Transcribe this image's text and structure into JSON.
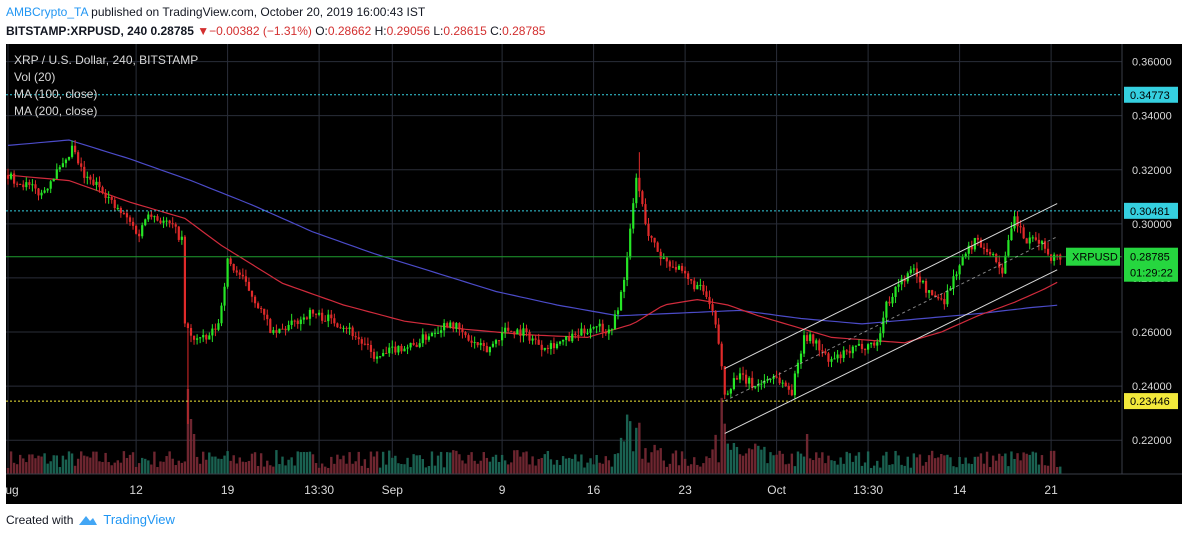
{
  "header": {
    "author": "AMBCrypto_TA",
    "published_text": "published on TradingView.com, October 20, 2019 16:00:43 IST",
    "symbol_line_prefix": "BITSTAMP:XRPUSD, 240",
    "last_price": "0.28785",
    "change_arrow": "▼",
    "change": "−0.00382 (−1.31%)",
    "ohlc": [
      {
        "label": "O:",
        "value": "0.28662"
      },
      {
        "label": "H:",
        "value": "0.29056"
      },
      {
        "label": "L:",
        "value": "0.28615"
      },
      {
        "label": "C:",
        "value": "0.28785"
      }
    ]
  },
  "legend": {
    "title": "XRP / U.S. Dollar, 240, BITSTAMP",
    "items": [
      "Vol (20)",
      "MA (100, close)",
      "MA (200, close)"
    ]
  },
  "footer": {
    "created_with": "Created with",
    "brand": "TradingView"
  },
  "colors": {
    "up": "#26e626",
    "down": "#e02a2a",
    "ma100": "#d02b3c",
    "ma200": "#4b4bc8",
    "cyan": "#35d0e0",
    "yellow": "#f2e93b",
    "green_line": "#1f9d2f",
    "channel": "#d8d8d8"
  },
  "chart_data": {
    "type": "candlestick",
    "symbol": "XRPUSD",
    "price_axis": {
      "ticks": [
        "0.36000",
        "0.34000",
        "0.32000",
        "0.30000",
        "0.28000",
        "0.26000",
        "0.24000",
        "0.22000"
      ],
      "tick_values": [
        0.36,
        0.34,
        0.32,
        0.3,
        0.28,
        0.26,
        0.24,
        0.22
      ],
      "range": [
        0.2075,
        0.3665
      ]
    },
    "time_axis": {
      "labels": [
        "Aug",
        "12",
        "19",
        "13:30",
        "Sep",
        "9",
        "16",
        "23",
        "Oct",
        "13:30",
        "14",
        "21"
      ],
      "label_bar_index": [
        0,
        42,
        72,
        102,
        126,
        162,
        192,
        222,
        252,
        282,
        312,
        342
      ]
    },
    "horizontal_lines": [
      {
        "value": 0.34773,
        "label": "0.34773",
        "style": "dotted",
        "color": "cyan"
      },
      {
        "value": 0.30481,
        "label": "0.30481",
        "style": "dotted",
        "color": "cyan"
      },
      {
        "value": 0.23446,
        "label": "0.23446",
        "style": "dotted",
        "color": "yellow"
      },
      {
        "value": 0.28785,
        "label": "0.28785",
        "style": "solid",
        "color": "green"
      }
    ],
    "last_price_tag": {
      "symbol": "XRPUSD",
      "value": "0.28785",
      "countdown": "01:29:22"
    },
    "channel": {
      "upper": [
        [
          0.2465,
          0.3075
        ]
      ],
      "lower": [
        [
          0.2225,
          0.283
        ]
      ],
      "start_bar": 235,
      "end_bar": 344
    },
    "anchors": [
      [
        0,
        0.318
      ],
      [
        6,
        0.315
      ],
      [
        12,
        0.311
      ],
      [
        16,
        0.318
      ],
      [
        20,
        0.322
      ],
      [
        22,
        0.328
      ],
      [
        26,
        0.317
      ],
      [
        32,
        0.313
      ],
      [
        36,
        0.306
      ],
      [
        40,
        0.302
      ],
      [
        44,
        0.296
      ],
      [
        47,
        0.305
      ],
      [
        50,
        0.302
      ],
      [
        55,
        0.299
      ],
      [
        58,
        0.294
      ],
      [
        59,
        0.263
      ],
      [
        61,
        0.258
      ],
      [
        66,
        0.257
      ],
      [
        70,
        0.263
      ],
      [
        73,
        0.286
      ],
      [
        77,
        0.281
      ],
      [
        82,
        0.272
      ],
      [
        88,
        0.259
      ],
      [
        93,
        0.262
      ],
      [
        100,
        0.267
      ],
      [
        106,
        0.265
      ],
      [
        112,
        0.262
      ],
      [
        117,
        0.256
      ],
      [
        122,
        0.25
      ],
      [
        128,
        0.254
      ],
      [
        134,
        0.255
      ],
      [
        140,
        0.26
      ],
      [
        146,
        0.264
      ],
      [
        152,
        0.257
      ],
      [
        158,
        0.253
      ],
      [
        164,
        0.261
      ],
      [
        170,
        0.26
      ],
      [
        176,
        0.255
      ],
      [
        182,
        0.256
      ],
      [
        188,
        0.259
      ],
      [
        194,
        0.263
      ],
      [
        198,
        0.26
      ],
      [
        201,
        0.268
      ],
      [
        204,
        0.287
      ],
      [
        207,
        0.317
      ],
      [
        211,
        0.296
      ],
      [
        215,
        0.288
      ],
      [
        220,
        0.284
      ],
      [
        224,
        0.279
      ],
      [
        229,
        0.275
      ],
      [
        232,
        0.267
      ],
      [
        234,
        0.256
      ],
      [
        236,
        0.237
      ],
      [
        240,
        0.244
      ],
      [
        246,
        0.24
      ],
      [
        252,
        0.244
      ],
      [
        258,
        0.238
      ],
      [
        262,
        0.259
      ],
      [
        266,
        0.256
      ],
      [
        270,
        0.249
      ],
      [
        276,
        0.252
      ],
      [
        281,
        0.255
      ],
      [
        286,
        0.256
      ],
      [
        289,
        0.27
      ],
      [
        293,
        0.278
      ],
      [
        298,
        0.283
      ],
      [
        303,
        0.274
      ],
      [
        308,
        0.272
      ],
      [
        313,
        0.285
      ],
      [
        318,
        0.294
      ],
      [
        322,
        0.291
      ],
      [
        327,
        0.283
      ],
      [
        331,
        0.302
      ],
      [
        335,
        0.293
      ],
      [
        339,
        0.294
      ],
      [
        343,
        0.288
      ],
      [
        345,
        0.28785
      ]
    ],
    "ma100": [
      [
        0,
        0.318
      ],
      [
        20,
        0.316
      ],
      [
        40,
        0.308
      ],
      [
        58,
        0.302
      ],
      [
        70,
        0.292
      ],
      [
        90,
        0.278
      ],
      [
        110,
        0.27
      ],
      [
        130,
        0.264
      ],
      [
        150,
        0.261
      ],
      [
        170,
        0.259
      ],
      [
        190,
        0.258
      ],
      [
        205,
        0.263
      ],
      [
        215,
        0.27
      ],
      [
        226,
        0.272
      ],
      [
        236,
        0.27
      ],
      [
        246,
        0.266
      ],
      [
        258,
        0.262
      ],
      [
        270,
        0.258
      ],
      [
        282,
        0.257
      ],
      [
        294,
        0.256
      ],
      [
        306,
        0.26
      ],
      [
        318,
        0.266
      ],
      [
        330,
        0.271
      ],
      [
        340,
        0.276
      ],
      [
        345,
        0.279
      ]
    ],
    "ma200": [
      [
        0,
        0.329
      ],
      [
        20,
        0.331
      ],
      [
        40,
        0.324
      ],
      [
        60,
        0.316
      ],
      [
        80,
        0.307
      ],
      [
        100,
        0.297
      ],
      [
        120,
        0.289
      ],
      [
        140,
        0.282
      ],
      [
        160,
        0.275
      ],
      [
        180,
        0.27
      ],
      [
        200,
        0.266
      ],
      [
        220,
        0.267
      ],
      [
        240,
        0.268
      ],
      [
        260,
        0.265
      ],
      [
        280,
        0.263
      ],
      [
        300,
        0.265
      ],
      [
        320,
        0.267
      ],
      [
        335,
        0.269
      ],
      [
        345,
        0.27
      ]
    ],
    "volume_bars": 346
  }
}
